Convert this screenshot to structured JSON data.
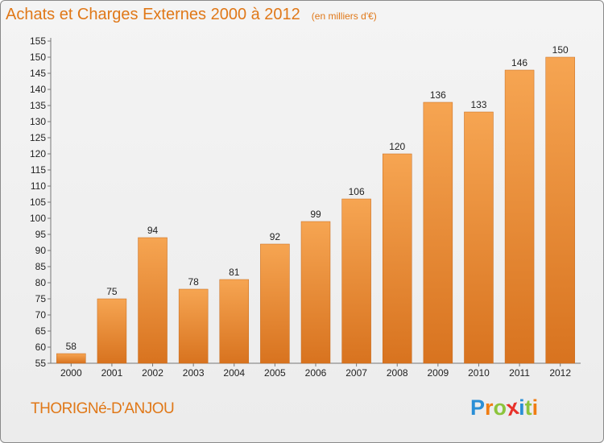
{
  "header": {
    "title": "Achats et Charges Externes 2000 à 2012",
    "unit": "(en milliers d'€)"
  },
  "footer": {
    "commune": "THORIGNé-D'ANJOU",
    "logo": [
      {
        "ch": "P",
        "color": "#2a8fd6"
      },
      {
        "ch": "r",
        "color": "#f07d12"
      },
      {
        "ch": "o",
        "color": "#8cc43c"
      },
      {
        "ch": "x",
        "color": "#e8312a"
      },
      {
        "ch": "i",
        "color": "#2a8fd6"
      },
      {
        "ch": "t",
        "color": "#8cc43c"
      },
      {
        "ch": "i",
        "color": "#f07d12"
      }
    ]
  },
  "chart_data": {
    "type": "bar",
    "categories": [
      "2000",
      "2001",
      "2002",
      "2003",
      "2004",
      "2005",
      "2006",
      "2007",
      "2008",
      "2009",
      "2010",
      "2011",
      "2012"
    ],
    "values": [
      58,
      75,
      94,
      78,
      81,
      92,
      99,
      106,
      120,
      136,
      133,
      146,
      150
    ],
    "data_labels": [
      "58",
      "75",
      "94",
      "78",
      "81",
      "92",
      "99",
      "106",
      "120",
      "136",
      "133",
      "146",
      "150"
    ],
    "ylim": [
      55,
      155
    ],
    "ytick_step": 5,
    "grid": false,
    "bar_color_top": "#f6a552",
    "bar_color_bottom": "#d8731f",
    "axis_color": "#777777",
    "text_color": "#222222"
  }
}
